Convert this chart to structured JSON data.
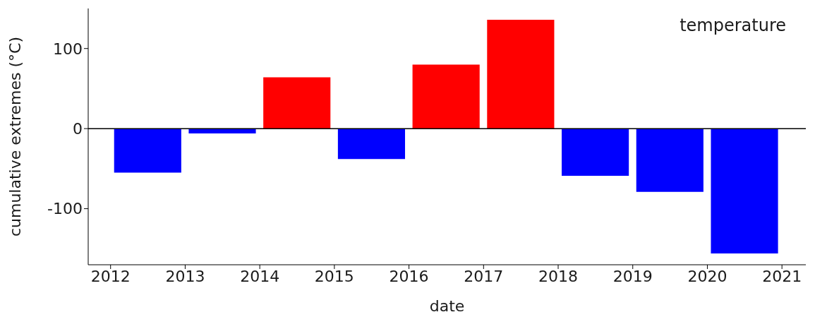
{
  "chart_data": {
    "type": "bar",
    "xlabel": "date",
    "ylabel": "cumulative extremes (°C)",
    "annotations": [
      "temperature"
    ],
    "x": [
      2012.5,
      2013.5,
      2014.5,
      2015.5,
      2016.5,
      2017.5,
      2018.5,
      2019.5,
      2020.5
    ],
    "values": [
      -55,
      -6,
      64,
      -38,
      80,
      136,
      -59,
      -79,
      -156
    ],
    "colors": [
      "#0000ff",
      "#0000ff",
      "#ff0000",
      "#0000ff",
      "#ff0000",
      "#ff0000",
      "#0000ff",
      "#0000ff",
      "#0000ff"
    ],
    "xlim": [
      2011.7,
      2021.32
    ],
    "xticks": [
      2012,
      2013,
      2014,
      2015,
      2016,
      2017,
      2018,
      2019,
      2020,
      2021
    ],
    "ylim": [
      -170,
      150
    ],
    "yticks": [
      -100,
      0,
      100
    ],
    "ref_lines": [
      {
        "axis": "y",
        "value": 0,
        "color": "#000000"
      }
    ]
  }
}
